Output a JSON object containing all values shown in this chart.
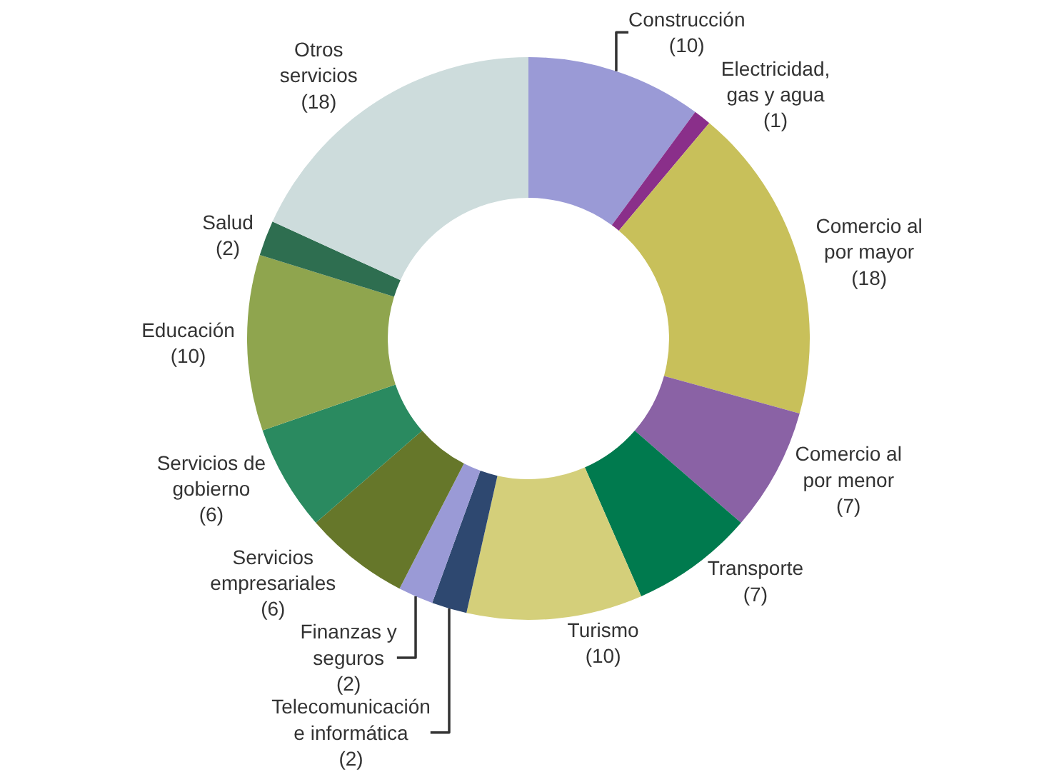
{
  "chart_data": {
    "type": "donut",
    "categories": [
      "Construcción",
      "Electricidad, gas y agua",
      "Comercio al por mayor",
      "Comercio al por menor",
      "Transporte",
      "Turismo",
      "Telecomunicación e informática",
      "Finanzas y seguros",
      "Servicios empresariales",
      "Servicios de gobierno",
      "Educación",
      "Salud",
      "Otros servicios"
    ],
    "values": [
      10,
      1,
      18,
      7,
      7,
      10,
      2,
      2,
      6,
      6,
      10,
      2,
      18
    ],
    "value_labels": [
      "(10)",
      "(1)",
      "(18)",
      "(7)",
      "(7)",
      "(10)",
      "(2)",
      "(2)",
      "(6)",
      "(6)",
      "(10)",
      "(2)",
      "(18)"
    ],
    "colors": [
      "#9a9ad6",
      "#8a2f8a",
      "#c8c05a",
      "#8a62a5",
      "#007a4e",
      "#d4cf7a",
      "#2e4870",
      "#9a9ad6",
      "#66772a",
      "#2a8a60",
      "#8fa54e",
      "#2e6e50",
      "#cddcdc"
    ],
    "legend": false
  }
}
